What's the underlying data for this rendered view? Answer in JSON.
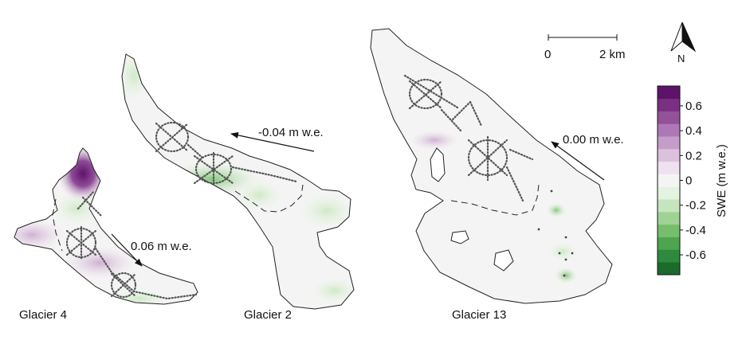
{
  "glaciers": [
    {
      "id": "g4",
      "label": "Glacier 4",
      "arrow_label": "0.06 m w.e."
    },
    {
      "id": "g2",
      "label": "Glacier 2",
      "arrow_label": "-0.04 m w.e."
    },
    {
      "id": "g13",
      "label": "Glacier 13",
      "arrow_label": "0.00 m w.e."
    }
  ],
  "scale_bar": {
    "start_label": "0",
    "end_label": "2 km"
  },
  "north_arrow": {
    "label": "N"
  },
  "colorbar": {
    "title": "SWE (m w.e.)",
    "ticks": [
      "0.6",
      "0.4",
      "0.2",
      "0",
      "-0.2",
      "-0.4",
      "-0.6"
    ],
    "range": [
      -0.76,
      0.76
    ],
    "colors": [
      "#1b6b2a",
      "#2e8a3c",
      "#4ea54f",
      "#76be6c",
      "#9fd393",
      "#c5e6bc",
      "#e4f3df",
      "#f4f4f4",
      "#efe1ef",
      "#dcc1dd",
      "#c59dc9",
      "#ad78b5",
      "#935199",
      "#7a2f82",
      "#5e136a"
    ]
  }
}
